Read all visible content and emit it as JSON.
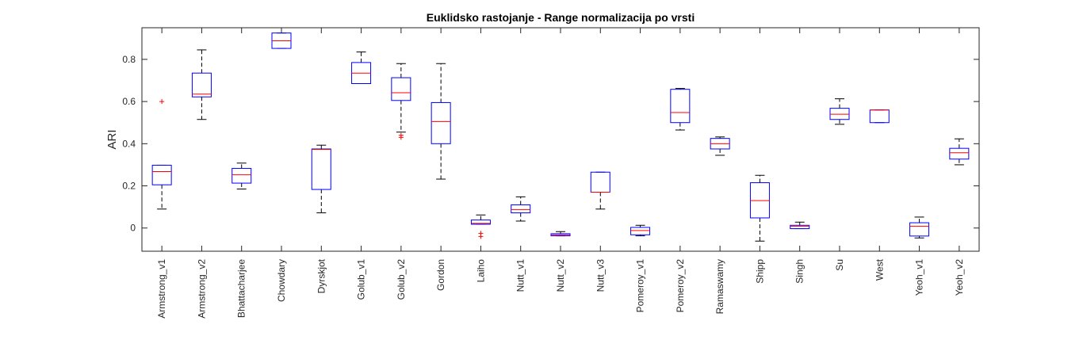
{
  "chart_data": {
    "type": "box",
    "title": "Euklidsko rastojanje - Range normalizacija po vrsti",
    "xlabel": "",
    "ylabel": "ARI",
    "ylim": [
      -0.11,
      0.95
    ],
    "yticks": [
      0,
      0.2,
      0.4,
      0.6,
      0.8
    ],
    "ytick_labels": [
      "0",
      "0.2",
      "0.4",
      "0.6",
      "0.8"
    ],
    "grid": false,
    "colors": {
      "box": "#0000ff",
      "median": "#ff0000",
      "whisker": "#000000",
      "outlier": "#ff0000",
      "axis": "#262626"
    },
    "categories": [
      "Armstrong_v1",
      "Armstrong_v2",
      "Bhattacharjee",
      "Chowdary",
      "Dyrskjot",
      "Golub_v1",
      "Golub_v2",
      "Gordon",
      "Laiho",
      "Nutt_v1",
      "Nutt_v2",
      "Nutt_v3",
      "Pomeroy_v1",
      "Pomeroy_v2",
      "Ramaswamy",
      "Shipp",
      "Singh",
      "Su",
      "West",
      "Yeoh_v1",
      "Yeoh_v2"
    ],
    "boxes": [
      {
        "min": 0.09,
        "q1": 0.205,
        "median": 0.268,
        "q3": 0.298,
        "max": 0.298,
        "outliers": [
          0.6
        ]
      },
      {
        "min": 0.515,
        "q1": 0.622,
        "median": 0.635,
        "q3": 0.735,
        "max": 0.845,
        "outliers": []
      },
      {
        "min": 0.185,
        "q1": 0.213,
        "median": 0.253,
        "q3": 0.283,
        "max": 0.308,
        "outliers": []
      },
      {
        "min": 0.852,
        "q1": 0.852,
        "median": 0.888,
        "q3": 0.925,
        "max": 0.925,
        "outliers": []
      },
      {
        "min": 0.072,
        "q1": 0.183,
        "median": 0.373,
        "q3": 0.375,
        "max": 0.393,
        "outliers": []
      },
      {
        "min": 0.685,
        "q1": 0.685,
        "median": 0.735,
        "q3": 0.785,
        "max": 0.835,
        "outliers": []
      },
      {
        "min": 0.455,
        "q1": 0.605,
        "median": 0.642,
        "q3": 0.713,
        "max": 0.78,
        "outliers": [
          0.44,
          0.43
        ]
      },
      {
        "min": 0.232,
        "q1": 0.4,
        "median": 0.505,
        "q3": 0.595,
        "max": 0.78,
        "outliers": []
      },
      {
        "min": 0.018,
        "q1": 0.018,
        "median": 0.022,
        "q3": 0.038,
        "max": 0.062,
        "outliers": [
          -0.025,
          -0.04
        ]
      },
      {
        "min": 0.033,
        "q1": 0.072,
        "median": 0.088,
        "q3": 0.11,
        "max": 0.148,
        "outliers": []
      },
      {
        "min": -0.037,
        "q1": -0.037,
        "median": -0.032,
        "q3": -0.027,
        "max": -0.017,
        "outliers": []
      },
      {
        "min": 0.09,
        "q1": 0.17,
        "median": 0.17,
        "q3": 0.265,
        "max": 0.265,
        "outliers": []
      },
      {
        "min": -0.037,
        "q1": -0.032,
        "median": -0.012,
        "q3": 0.003,
        "max": 0.013,
        "outliers": []
      },
      {
        "min": 0.465,
        "q1": 0.5,
        "median": 0.548,
        "q3": 0.658,
        "max": 0.662,
        "outliers": []
      },
      {
        "min": 0.345,
        "q1": 0.375,
        "median": 0.4,
        "q3": 0.425,
        "max": 0.432,
        "outliers": []
      },
      {
        "min": -0.062,
        "q1": 0.048,
        "median": 0.13,
        "q3": 0.215,
        "max": 0.25,
        "outliers": []
      },
      {
        "min": -0.003,
        "q1": -0.003,
        "median": 0.008,
        "q3": 0.013,
        "max": 0.028,
        "outliers": []
      },
      {
        "min": 0.492,
        "q1": 0.515,
        "median": 0.54,
        "q3": 0.568,
        "max": 0.613,
        "outliers": []
      },
      {
        "min": 0.5,
        "q1": 0.5,
        "median": 0.56,
        "q3": 0.56,
        "max": 0.56,
        "outliers": []
      },
      {
        "min": -0.047,
        "q1": -0.038,
        "median": 0.008,
        "q3": 0.025,
        "max": 0.052,
        "outliers": []
      },
      {
        "min": 0.3,
        "q1": 0.327,
        "median": 0.357,
        "q3": 0.378,
        "max": 0.423,
        "outliers": []
      }
    ]
  }
}
